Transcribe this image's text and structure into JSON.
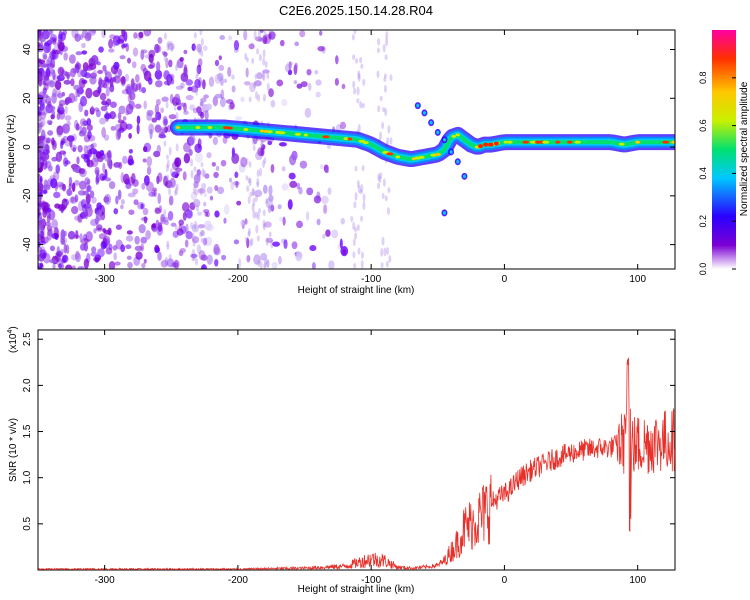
{
  "figure_title": "C2E6.2025.150.14.28.R04",
  "colors": {
    "snr_line": "#e8302a",
    "frame": "#000000",
    "background": "#ffffff"
  },
  "chart_data": [
    {
      "type": "heatmap",
      "title": "",
      "xlabel": "Height of straight line (km)",
      "ylabel": "Frequency (Hz)",
      "xlim": [
        -350,
        128
      ],
      "ylim": [
        -50,
        48
      ],
      "x_ticks": [
        -300,
        -200,
        -100,
        0,
        100
      ],
      "y_ticks": [
        -40,
        -20,
        0,
        20,
        40
      ],
      "colorbar": {
        "label": "Normalized spectral amplitude",
        "range": [
          0,
          1
        ],
        "ticks": [
          0.0,
          0.2,
          0.4,
          0.6,
          0.8
        ],
        "colormap": [
          "#ffffff",
          "#7b00d4",
          "#2a00ff",
          "#00c8ff",
          "#00e070",
          "#c8f000",
          "#ffc800",
          "#ff3000",
          "#ff00a0"
        ]
      },
      "ridge": {
        "x": [
          -245,
          -230,
          -210,
          -190,
          -170,
          -150,
          -130,
          -110,
          -100,
          -90,
          -80,
          -70,
          -60,
          -50,
          -45,
          -40,
          -35,
          -30,
          -25,
          -20,
          -15,
          -10,
          0,
          20,
          50,
          80,
          90,
          100,
          128
        ],
        "y": [
          8,
          8,
          8,
          7,
          6,
          5,
          4,
          3,
          1,
          -2,
          -4,
          -5,
          -4,
          -3,
          -1,
          4,
          5,
          3,
          1,
          0,
          1,
          1,
          2,
          2,
          2,
          2,
          1,
          2,
          2
        ]
      },
      "grid": false
    },
    {
      "type": "line",
      "title": "",
      "xlabel": "Height of straight line (km)",
      "ylabel": "SNR (10 * v/v)",
      "y_multiplier": "(x10",
      "y_multiplier_exp": "4",
      "y_multiplier_close": ")",
      "xlim": [
        -350,
        128
      ],
      "ylim": [
        0,
        2.6
      ],
      "x_ticks": [
        -300,
        -200,
        -100,
        0,
        100
      ],
      "y_ticks": [
        0.5,
        1.0,
        1.5,
        2.0,
        2.5
      ],
      "y_tick_labels": [
        "0.5",
        "1.0",
        "1.5",
        "2.0",
        "2.5"
      ],
      "series": [
        {
          "x": [
            -350,
            -300,
            -250,
            -200,
            -150,
            -120,
            -110,
            -100,
            -90,
            -80,
            -70,
            -60,
            -50,
            -45,
            -40,
            -35,
            -30,
            -25,
            -20,
            -15,
            -10,
            -5,
            0,
            5,
            10,
            20,
            30,
            40,
            50,
            60,
            70,
            80,
            85,
            90,
            93,
            95,
            97,
            100,
            110,
            120,
            128
          ],
          "y": [
            0.01,
            0.01,
            0.01,
            0.01,
            0.02,
            0.04,
            0.08,
            0.12,
            0.1,
            0.03,
            0.02,
            0.03,
            0.05,
            0.1,
            0.2,
            0.3,
            0.45,
            0.5,
            0.55,
            0.62,
            0.72,
            0.78,
            0.82,
            0.88,
            0.98,
            1.08,
            1.15,
            1.22,
            1.27,
            1.3,
            1.32,
            1.33,
            1.36,
            1.38,
            2.2,
            1.38,
            1.35,
            1.35,
            1.38,
            1.4,
            1.42
          ]
        }
      ],
      "grid": false
    }
  ]
}
